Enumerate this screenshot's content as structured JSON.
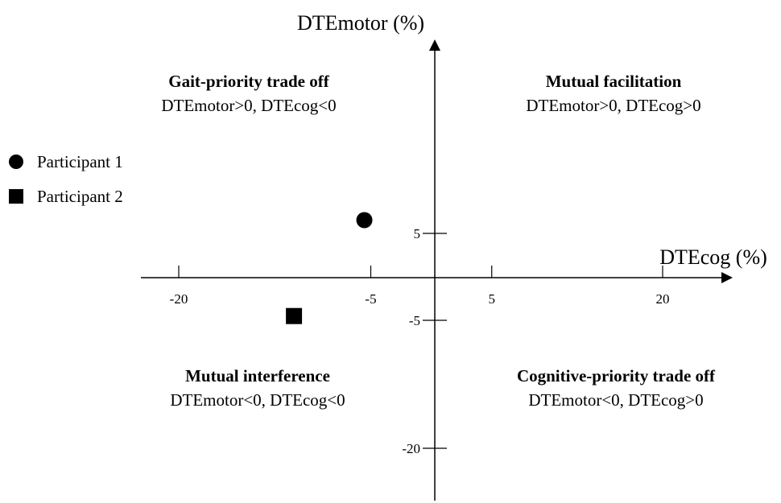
{
  "chart_data": {
    "type": "scatter",
    "xlabel": "DTEcog (%)",
    "ylabel": "DTEmotor (%)",
    "x_ticks": [
      {
        "value": -20,
        "label": "-20"
      },
      {
        "value": -5,
        "label": "-5"
      },
      {
        "value": 5,
        "label": "5"
      },
      {
        "value": 20,
        "label": "20"
      }
    ],
    "y_ticks": [
      {
        "value": 5,
        "label": "5"
      },
      {
        "value": -5,
        "label": "-5"
      },
      {
        "value": -20,
        "label": "-20"
      }
    ],
    "series": [
      {
        "name": "Participant 1",
        "marker": "circle",
        "color": "#000000",
        "points": [
          {
            "x": -5.5,
            "y": 6.5
          }
        ]
      },
      {
        "name": "Participant 2",
        "marker": "square",
        "color": "#000000",
        "points": [
          {
            "x": -11,
            "y": -4.5
          }
        ]
      }
    ],
    "legend_position": "left",
    "grid": false,
    "quadrants": [
      {
        "id": "top-left",
        "title": "Gait-priority trade off",
        "condition": "DTEmotor>0, DTEcog<0"
      },
      {
        "id": "top-right",
        "title": "Mutual facilitation",
        "condition": "DTEmotor>0, DTEcog>0"
      },
      {
        "id": "bottom-left",
        "title": "Mutual interference",
        "condition": "DTEmotor<0, DTEcog<0"
      },
      {
        "id": "bottom-right",
        "title": "Cognitive-priority trade off",
        "condition": "DTEmotor<0, DTEcog>0"
      }
    ]
  }
}
